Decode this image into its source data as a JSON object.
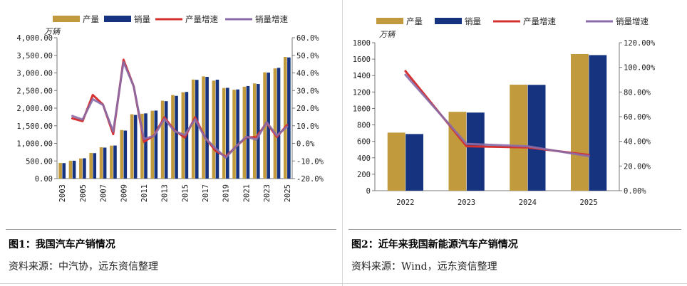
{
  "colors": {
    "production": "#C09A3D",
    "sales": "#15337F",
    "production_growth": "#D63131",
    "sales_growth": "#8A6DA8"
  },
  "chart_data": [
    {
      "type": "bar",
      "title": "图1：我国汽车产销情况",
      "source": "资料来源：中汽协，远东资信整理",
      "unit": "万辆",
      "legend": [
        "产量",
        "销量",
        "产量增速",
        "销量增速"
      ],
      "categories": [
        "2003",
        "2004",
        "2005",
        "2006",
        "2007",
        "2008",
        "2009",
        "2010",
        "2011",
        "2012",
        "2013",
        "2014",
        "2015",
        "2016",
        "2017",
        "2018",
        "2019",
        "2020",
        "2021",
        "2022",
        "2023",
        "2024",
        "2025"
      ],
      "x_tick_labels": [
        "2003",
        "2005",
        "2007",
        "2009",
        "2011",
        "2013",
        "2015",
        "2017",
        "2019",
        "2021",
        "2023",
        "2025"
      ],
      "y_left_ticks": [
        "4,000.00",
        "3,500.00",
        "3,000.00",
        "2,500.00",
        "2,000.00",
        "1,500.00",
        "1,000.00",
        "500.00",
        "0.00"
      ],
      "y_right_ticks": [
        "60.0%",
        "50.0%",
        "40.0%",
        "30.0%",
        "20.0%",
        "10.0%",
        "0.0%",
        "-10.0%",
        "-20.0%"
      ],
      "ylim_left": [
        0,
        4000
      ],
      "ylim_right": [
        -20,
        60
      ],
      "series": [
        {
          "name": "产量",
          "kind": "bar",
          "axis": "left",
          "values": [
            444,
            507,
            571,
            728,
            888,
            935,
            1379,
            1826,
            1842,
            1927,
            2212,
            2372,
            2450,
            2812,
            2902,
            2781,
            2572,
            2523,
            2608,
            2702,
            3016,
            3128,
            3453
          ]
        },
        {
          "name": "销量",
          "kind": "bar",
          "axis": "left",
          "values": [
            439,
            507,
            576,
            722,
            879,
            938,
            1364,
            1806,
            1851,
            1931,
            2198,
            2349,
            2460,
            2803,
            2888,
            2808,
            2577,
            2531,
            2628,
            2686,
            3009,
            3144,
            3440
          ]
        },
        {
          "name": "产量增速",
          "kind": "line",
          "axis": "right",
          "values": [
            null,
            14.2,
            12.6,
            27.5,
            22.0,
            5.2,
            47.5,
            32.4,
            0.8,
            4.6,
            14.8,
            7.3,
            3.3,
            14.8,
            3.2,
            -4.2,
            -7.5,
            -1.9,
            3.4,
            3.6,
            11.6,
            3.7,
            10.4
          ]
        },
        {
          "name": "销量增速",
          "kind": "line",
          "axis": "right",
          "values": [
            null,
            15.5,
            13.5,
            25.1,
            21.8,
            6.7,
            46.2,
            32.4,
            2.5,
            4.3,
            13.9,
            6.9,
            4.7,
            13.7,
            3.0,
            -2.8,
            -8.2,
            -1.8,
            3.8,
            2.1,
            12.0,
            4.5,
            9.4
          ]
        }
      ]
    },
    {
      "type": "bar",
      "title": "图2：近年来我国新能源汽车产销情况",
      "source": "资料来源：Wind，远东资信整理",
      "unit": "万辆",
      "legend": [
        "产量",
        "销量",
        "产量增速",
        "销量增速"
      ],
      "categories": [
        "2022",
        "2023",
        "2024",
        "2025"
      ],
      "x_tick_labels": [
        "2022",
        "2023",
        "2024",
        "2025"
      ],
      "y_left_ticks": [
        "1800",
        "1600",
        "1400",
        "1200",
        "1000",
        "800",
        "600",
        "400",
        "200",
        "0"
      ],
      "y_right_ticks": [
        "120.00%",
        "100.00%",
        "80.00%",
        "60.00%",
        "40.00%",
        "20.00%",
        "0.00%"
      ],
      "ylim_left": [
        0,
        1800
      ],
      "ylim_right": [
        0,
        120
      ],
      "series": [
        {
          "name": "产量",
          "kind": "bar",
          "axis": "left",
          "values": [
            706,
            959,
            1289,
            1662
          ]
        },
        {
          "name": "销量",
          "kind": "bar",
          "axis": "left",
          "values": [
            689,
            950,
            1287,
            1649
          ]
        },
        {
          "name": "产量增速",
          "kind": "line",
          "axis": "right",
          "values": [
            97,
            36,
            35,
            29
          ]
        },
        {
          "name": "销量增速",
          "kind": "line",
          "axis": "right",
          "values": [
            94,
            38,
            36,
            28
          ]
        }
      ]
    }
  ]
}
